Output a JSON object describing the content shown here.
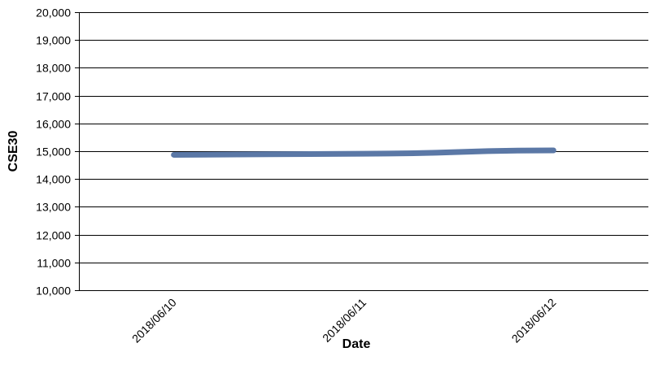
{
  "chart_data": {
    "type": "line",
    "title": "",
    "xlabel": "Date",
    "ylabel": "CSE30",
    "categories": [
      "2018/06/10",
      "2018/06/11",
      "2018/06/12"
    ],
    "series": [
      {
        "values": [
          14870,
          14910,
          15030
        ],
        "color": "#5b78a6"
      }
    ],
    "ylim": [
      10000,
      20000
    ],
    "yticks": [
      10000,
      11000,
      12000,
      13000,
      14000,
      15000,
      16000,
      17000,
      18000,
      19000,
      20000
    ],
    "ytick_labels": [
      "10,000",
      "11,000",
      "12,000",
      "13,000",
      "14,000",
      "15,000",
      "16,000",
      "17,000",
      "18,000",
      "19,000",
      "20,000"
    ],
    "grid": true,
    "legend": "none",
    "axis_color": "#000000",
    "grid_color": "#000000"
  }
}
